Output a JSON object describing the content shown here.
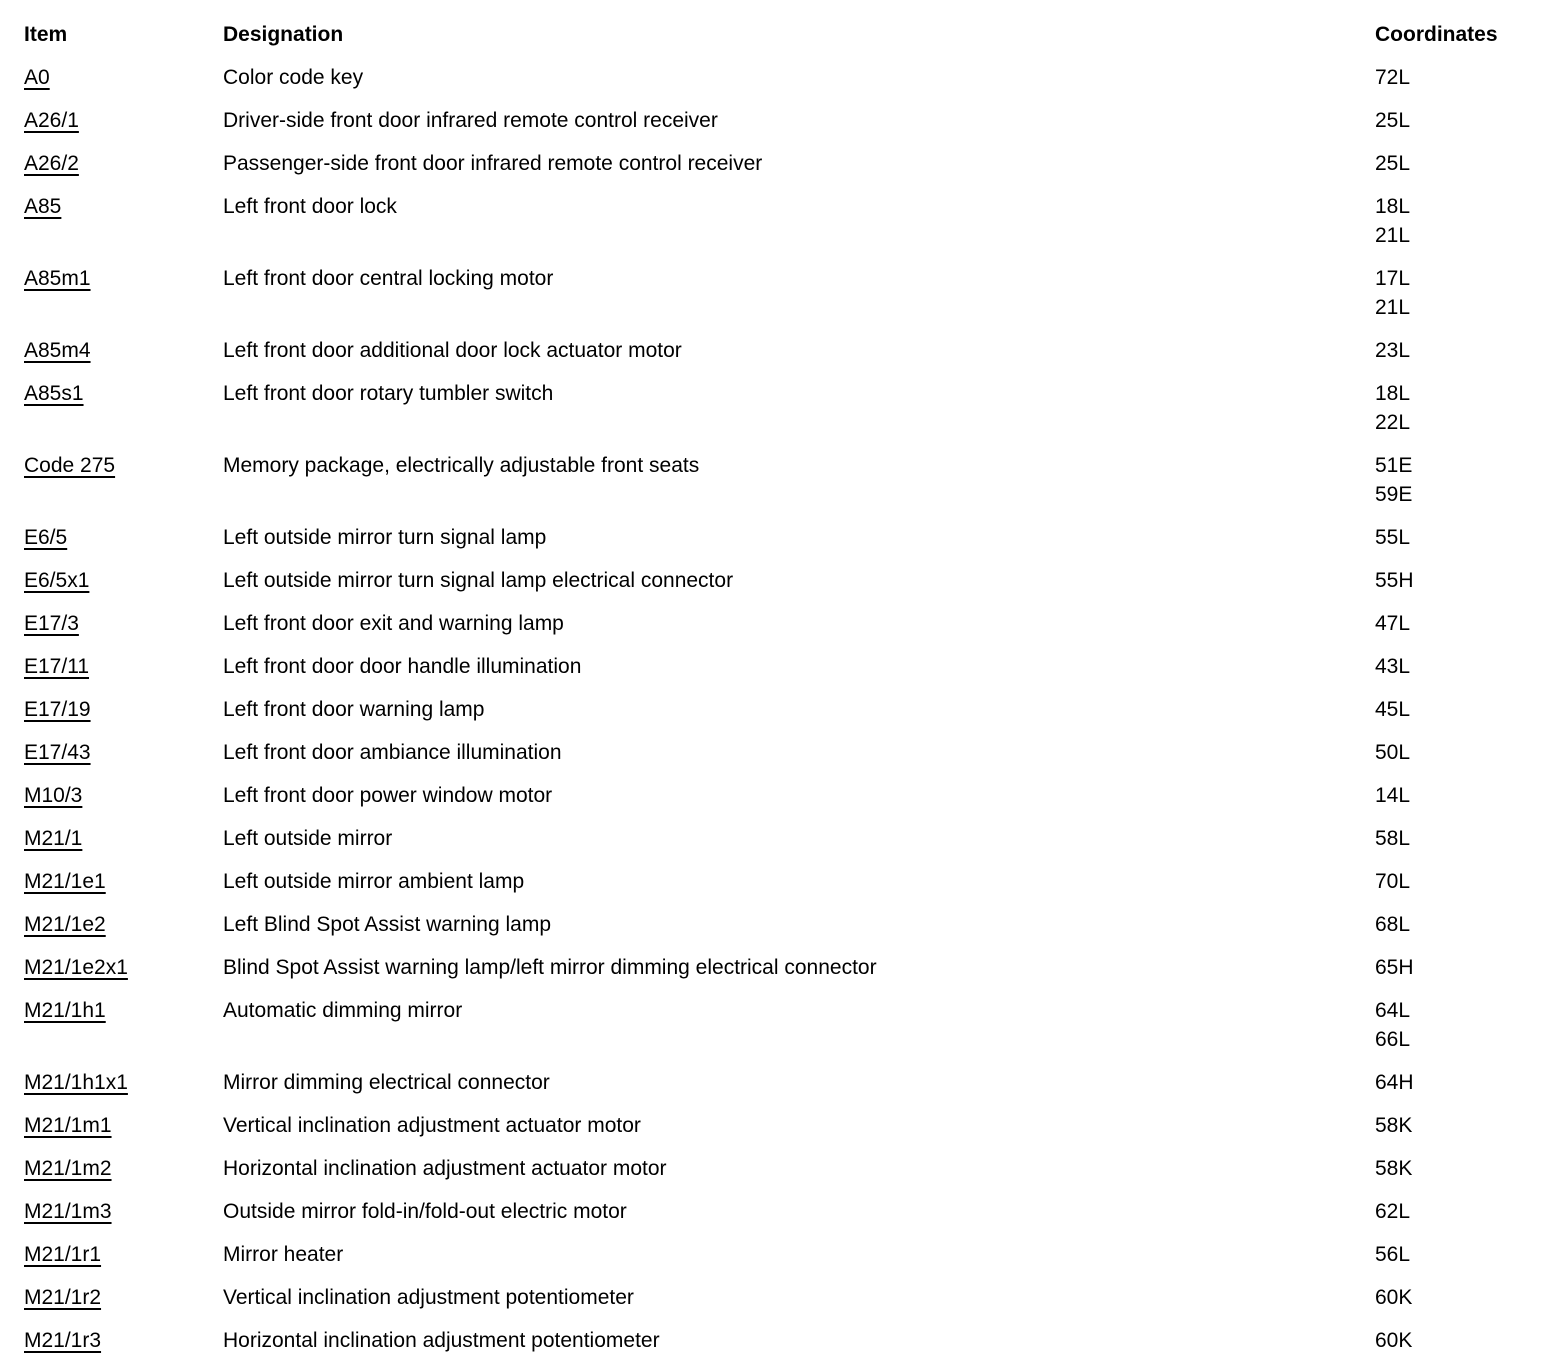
{
  "page": {
    "background_color": "#ffffff",
    "text_color": "#000000"
  },
  "table": {
    "headers": {
      "item": "Item",
      "designation": "Designation",
      "coordinates": "Coordinates"
    },
    "rows": [
      {
        "item": "A0",
        "designation": "Color code key",
        "coordinates": [
          "72L"
        ]
      },
      {
        "item": "A26/1",
        "designation": "Driver-side front door infrared remote control receiver",
        "coordinates": [
          "25L"
        ]
      },
      {
        "item": "A26/2",
        "designation": "Passenger-side front door infrared remote control receiver",
        "coordinates": [
          "25L"
        ]
      },
      {
        "item": "A85",
        "designation": "Left front door lock",
        "coordinates": [
          "18L",
          "21L"
        ]
      },
      {
        "item": "A85m1",
        "designation": "Left front door central locking motor",
        "coordinates": [
          "17L",
          "21L"
        ]
      },
      {
        "item": "A85m4",
        "designation": "Left front door additional door lock actuator motor",
        "coordinates": [
          "23L"
        ]
      },
      {
        "item": "A85s1",
        "designation": "Left front door rotary tumbler switch",
        "coordinates": [
          "18L",
          "22L"
        ]
      },
      {
        "item": "Code 275",
        "designation": "Memory package, electrically adjustable front seats",
        "coordinates": [
          "51E",
          "59E"
        ]
      },
      {
        "item": "E6/5",
        "designation": "Left outside mirror turn signal lamp",
        "coordinates": [
          "55L"
        ]
      },
      {
        "item": "E6/5x1",
        "designation": "Left outside mirror turn signal lamp electrical connector",
        "coordinates": [
          "55H"
        ]
      },
      {
        "item": "E17/3",
        "designation": "Left front door exit and warning lamp",
        "coordinates": [
          "47L"
        ]
      },
      {
        "item": "E17/11",
        "designation": "Left front door door handle illumination",
        "coordinates": [
          "43L"
        ]
      },
      {
        "item": "E17/19",
        "designation": "Left front door warning lamp",
        "coordinates": [
          "45L"
        ]
      },
      {
        "item": "E17/43",
        "designation": "Left front door ambiance illumination",
        "coordinates": [
          "50L"
        ]
      },
      {
        "item": "M10/3",
        "designation": "Left front door power window motor",
        "coordinates": [
          "14L"
        ]
      },
      {
        "item": "M21/1",
        "designation": "Left outside mirror",
        "coordinates": [
          "58L"
        ]
      },
      {
        "item": "M21/1e1",
        "designation": "Left outside mirror ambient lamp",
        "coordinates": [
          "70L"
        ]
      },
      {
        "item": "M21/1e2",
        "designation": "Left Blind Spot Assist warning lamp",
        "coordinates": [
          "68L"
        ]
      },
      {
        "item": "M21/1e2x1",
        "designation": "Blind Spot Assist warning lamp/left mirror dimming electrical connector",
        "coordinates": [
          "65H"
        ]
      },
      {
        "item": "M21/1h1",
        "designation": "Automatic dimming mirror",
        "coordinates": [
          "64L",
          "66L"
        ]
      },
      {
        "item": "M21/1h1x1",
        "designation": "Mirror dimming electrical connector",
        "coordinates": [
          "64H"
        ]
      },
      {
        "item": "M21/1m1",
        "designation": "Vertical inclination adjustment actuator motor",
        "coordinates": [
          "58K"
        ]
      },
      {
        "item": "M21/1m2",
        "designation": "Horizontal inclination adjustment actuator motor",
        "coordinates": [
          "58K"
        ]
      },
      {
        "item": "M21/1m3",
        "designation": "Outside mirror fold-in/fold-out electric motor",
        "coordinates": [
          "62L"
        ]
      },
      {
        "item": "M21/1r1",
        "designation": "Mirror heater",
        "coordinates": [
          "56L"
        ]
      },
      {
        "item": "M21/1r2",
        "designation": "Vertical inclination adjustment potentiometer",
        "coordinates": [
          "60K"
        ]
      },
      {
        "item": "M21/1r3",
        "designation": "Horizontal inclination adjustment potentiometer",
        "coordinates": [
          "60K"
        ]
      }
    ]
  }
}
